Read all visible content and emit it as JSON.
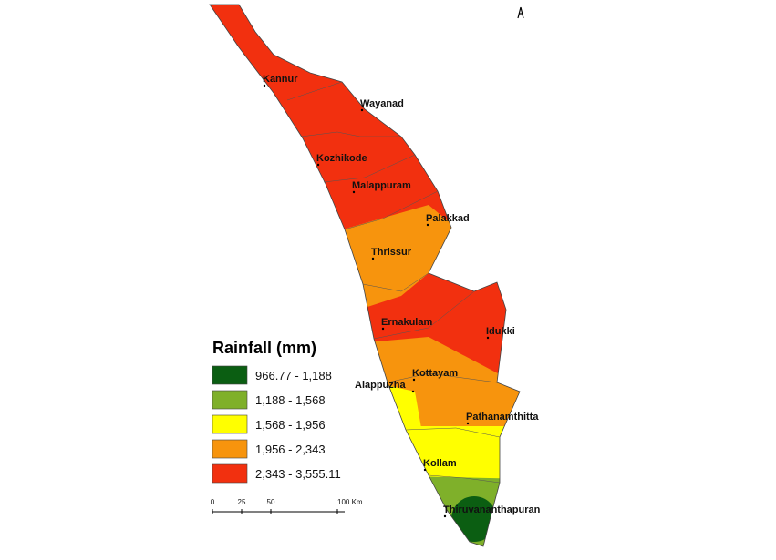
{
  "legend": {
    "title": "Rainfall (mm)",
    "classes": [
      {
        "label": "966.77 - 1,188",
        "color": "#0b5e12"
      },
      {
        "label": "1,188 - 1,568",
        "color": "#7fb02a"
      },
      {
        "label": "1,568 - 1,956",
        "color": "#ffff00"
      },
      {
        "label": "1,956 - 2,343",
        "color": "#f7940d"
      },
      {
        "label": "2,343 - 3,555.11",
        "color": "#f2300f"
      }
    ]
  },
  "districts": [
    "Kannur",
    "Wayanad",
    "Kozhikode",
    "Malappuram",
    "Palakkad",
    "Thrissur",
    "Ernakulam",
    "Idukki",
    "Kottayam",
    "Alappuzha",
    "Pathanamthitta",
    "Kollam",
    "Thiruvananthapuran"
  ],
  "scale_bar": {
    "labels": [
      "0",
      "25",
      "50",
      "100 Km"
    ]
  }
}
